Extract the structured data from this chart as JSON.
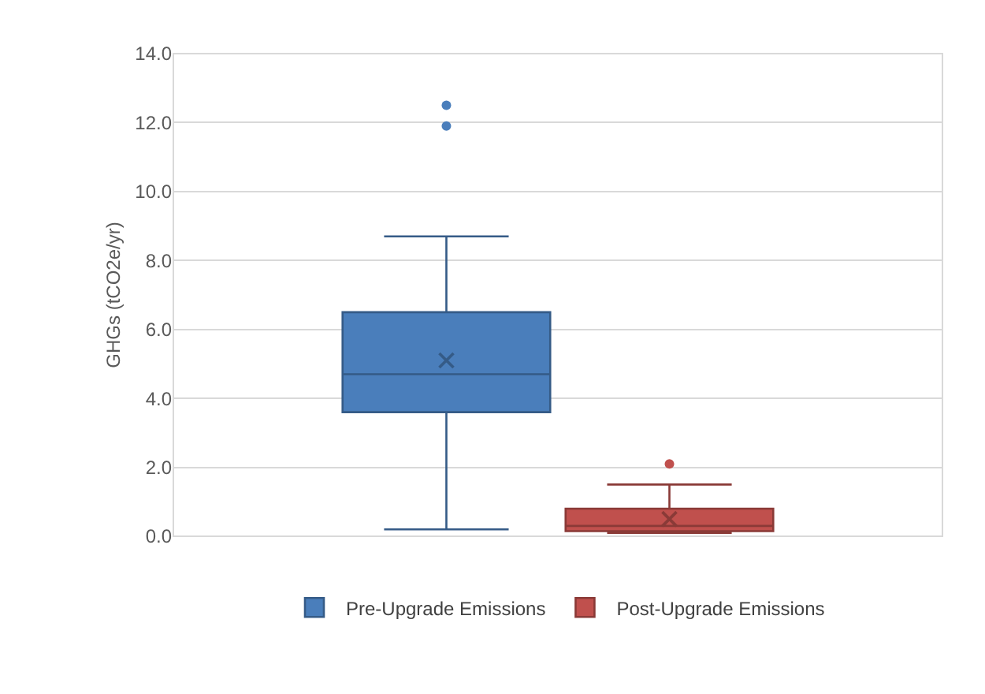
{
  "chart_data": {
    "type": "box",
    "ylabel": "GHGs (tCO2e/yr)",
    "categories": [
      null
    ],
    "series": [
      {
        "name": "Pre-Upgrade Emissions",
        "color": "#4a7ebb",
        "boxes": [
          {
            "low": 0.2,
            "q1": 3.6,
            "median": 4.7,
            "q3": 6.5,
            "high": 8.7,
            "mean": 5.1,
            "outliers": [
              11.9,
              12.5
            ]
          }
        ]
      },
      {
        "name": "Post-Upgrade Emissions",
        "color": "#c0504d",
        "boxes": [
          {
            "low": 0.1,
            "q1": 0.15,
            "median": 0.3,
            "q3": 0.8,
            "high": 1.5,
            "mean": 0.5,
            "outliers": [
              2.1
            ]
          }
        ]
      }
    ],
    "ylim": [
      0,
      14
    ],
    "yticks": [
      {
        "value": 0,
        "label": "0.0"
      },
      {
        "value": 2,
        "label": "2.0"
      },
      {
        "value": 4,
        "label": "4.0"
      },
      {
        "value": 6,
        "label": "6.0"
      },
      {
        "value": 8,
        "label": "8.0"
      },
      {
        "value": 10,
        "label": "10.0"
      },
      {
        "value": 12,
        "label": "12.0"
      },
      {
        "value": 14,
        "label": "14.0"
      }
    ],
    "grid": "y",
    "legend": "bottom",
    "marker": "circle"
  }
}
